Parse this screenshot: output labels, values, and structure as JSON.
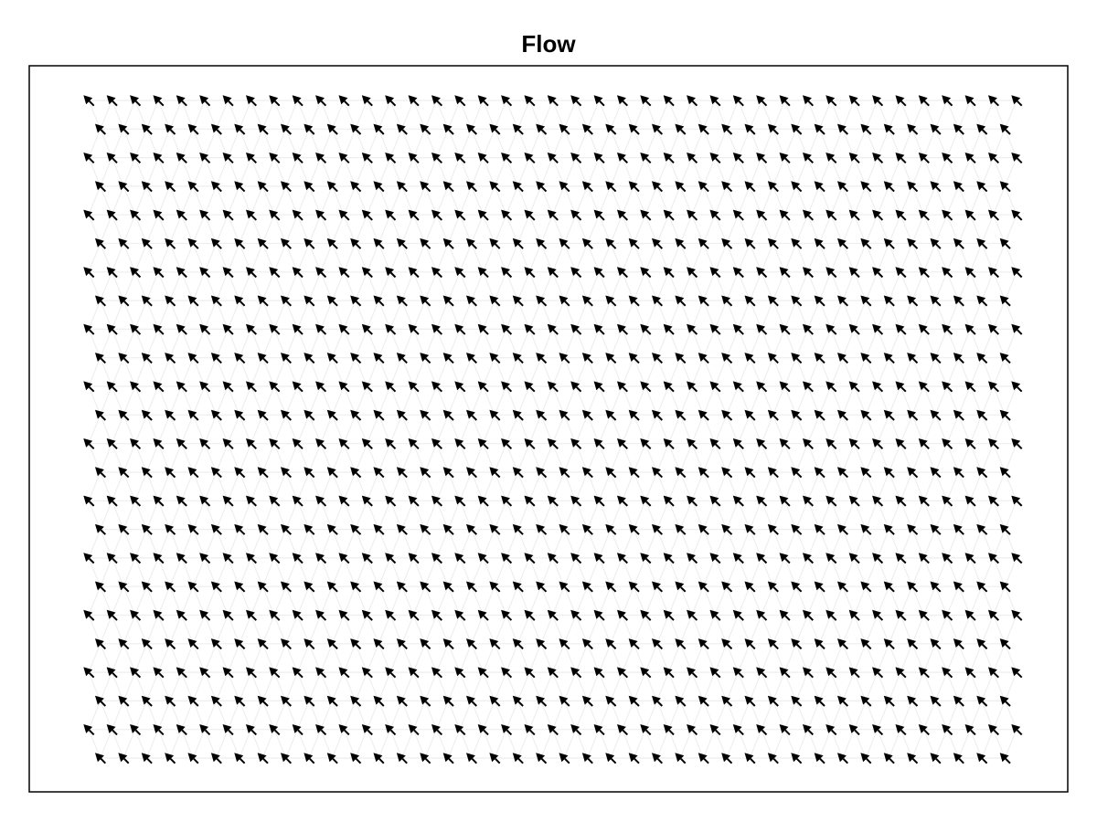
{
  "chart_data": {
    "type": "quiver",
    "title": "Flow",
    "xlabel": "",
    "ylabel": "",
    "grid": false,
    "legend": "none",
    "axis_ticks": false,
    "mesh": {
      "kind": "triangular",
      "columns": 41,
      "rows": 24,
      "color": "#eeeeee"
    },
    "vector_field": {
      "direction": "up-left",
      "angle_deg": 135,
      "uniform": true
    },
    "colors": {
      "arrow": "#000000",
      "mesh": "#eeeeee",
      "frame": "#000000",
      "background": "#ffffff"
    }
  }
}
